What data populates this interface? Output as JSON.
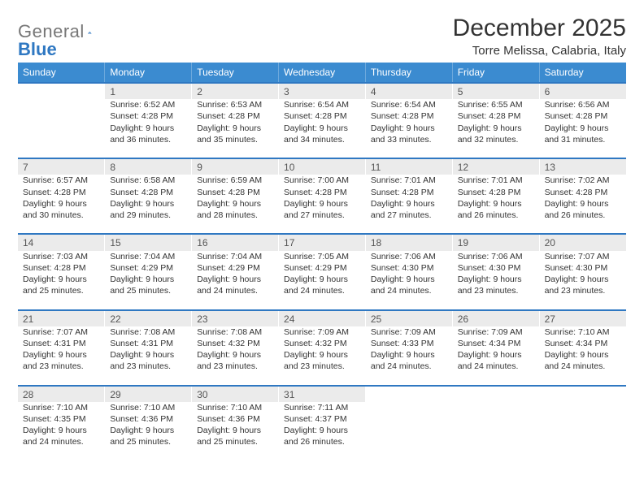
{
  "brand": {
    "word1": "General",
    "word2": "Blue",
    "color_gray": "#777777",
    "color_blue": "#2f78c2"
  },
  "title": "December 2025",
  "location": "Torre Melissa, Calabria, Italy",
  "weekdays": [
    "Sunday",
    "Monday",
    "Tuesday",
    "Wednesday",
    "Thursday",
    "Friday",
    "Saturday"
  ],
  "colors": {
    "header_bg": "#3b8bd0",
    "daynum_bg": "#ebebeb",
    "row_divider": "#2f78c2",
    "text": "#333333"
  },
  "weeks": [
    [
      null,
      {
        "n": "1",
        "sr": "6:52 AM",
        "ss": "4:28 PM",
        "dl": "9 hours and 36 minutes."
      },
      {
        "n": "2",
        "sr": "6:53 AM",
        "ss": "4:28 PM",
        "dl": "9 hours and 35 minutes."
      },
      {
        "n": "3",
        "sr": "6:54 AM",
        "ss": "4:28 PM",
        "dl": "9 hours and 34 minutes."
      },
      {
        "n": "4",
        "sr": "6:54 AM",
        "ss": "4:28 PM",
        "dl": "9 hours and 33 minutes."
      },
      {
        "n": "5",
        "sr": "6:55 AM",
        "ss": "4:28 PM",
        "dl": "9 hours and 32 minutes."
      },
      {
        "n": "6",
        "sr": "6:56 AM",
        "ss": "4:28 PM",
        "dl": "9 hours and 31 minutes."
      }
    ],
    [
      {
        "n": "7",
        "sr": "6:57 AM",
        "ss": "4:28 PM",
        "dl": "9 hours and 30 minutes."
      },
      {
        "n": "8",
        "sr": "6:58 AM",
        "ss": "4:28 PM",
        "dl": "9 hours and 29 minutes."
      },
      {
        "n": "9",
        "sr": "6:59 AM",
        "ss": "4:28 PM",
        "dl": "9 hours and 28 minutes."
      },
      {
        "n": "10",
        "sr": "7:00 AM",
        "ss": "4:28 PM",
        "dl": "9 hours and 27 minutes."
      },
      {
        "n": "11",
        "sr": "7:01 AM",
        "ss": "4:28 PM",
        "dl": "9 hours and 27 minutes."
      },
      {
        "n": "12",
        "sr": "7:01 AM",
        "ss": "4:28 PM",
        "dl": "9 hours and 26 minutes."
      },
      {
        "n": "13",
        "sr": "7:02 AM",
        "ss": "4:28 PM",
        "dl": "9 hours and 26 minutes."
      }
    ],
    [
      {
        "n": "14",
        "sr": "7:03 AM",
        "ss": "4:28 PM",
        "dl": "9 hours and 25 minutes."
      },
      {
        "n": "15",
        "sr": "7:04 AM",
        "ss": "4:29 PM",
        "dl": "9 hours and 25 minutes."
      },
      {
        "n": "16",
        "sr": "7:04 AM",
        "ss": "4:29 PM",
        "dl": "9 hours and 24 minutes."
      },
      {
        "n": "17",
        "sr": "7:05 AM",
        "ss": "4:29 PM",
        "dl": "9 hours and 24 minutes."
      },
      {
        "n": "18",
        "sr": "7:06 AM",
        "ss": "4:30 PM",
        "dl": "9 hours and 24 minutes."
      },
      {
        "n": "19",
        "sr": "7:06 AM",
        "ss": "4:30 PM",
        "dl": "9 hours and 23 minutes."
      },
      {
        "n": "20",
        "sr": "7:07 AM",
        "ss": "4:30 PM",
        "dl": "9 hours and 23 minutes."
      }
    ],
    [
      {
        "n": "21",
        "sr": "7:07 AM",
        "ss": "4:31 PM",
        "dl": "9 hours and 23 minutes."
      },
      {
        "n": "22",
        "sr": "7:08 AM",
        "ss": "4:31 PM",
        "dl": "9 hours and 23 minutes."
      },
      {
        "n": "23",
        "sr": "7:08 AM",
        "ss": "4:32 PM",
        "dl": "9 hours and 23 minutes."
      },
      {
        "n": "24",
        "sr": "7:09 AM",
        "ss": "4:32 PM",
        "dl": "9 hours and 23 minutes."
      },
      {
        "n": "25",
        "sr": "7:09 AM",
        "ss": "4:33 PM",
        "dl": "9 hours and 24 minutes."
      },
      {
        "n": "26",
        "sr": "7:09 AM",
        "ss": "4:34 PM",
        "dl": "9 hours and 24 minutes."
      },
      {
        "n": "27",
        "sr": "7:10 AM",
        "ss": "4:34 PM",
        "dl": "9 hours and 24 minutes."
      }
    ],
    [
      {
        "n": "28",
        "sr": "7:10 AM",
        "ss": "4:35 PM",
        "dl": "9 hours and 24 minutes."
      },
      {
        "n": "29",
        "sr": "7:10 AM",
        "ss": "4:36 PM",
        "dl": "9 hours and 25 minutes."
      },
      {
        "n": "30",
        "sr": "7:10 AM",
        "ss": "4:36 PM",
        "dl": "9 hours and 25 minutes."
      },
      {
        "n": "31",
        "sr": "7:11 AM",
        "ss": "4:37 PM",
        "dl": "9 hours and 26 minutes."
      },
      null,
      null,
      null
    ]
  ],
  "labels": {
    "sunrise": "Sunrise:",
    "sunset": "Sunset:",
    "daylight": "Daylight:"
  }
}
